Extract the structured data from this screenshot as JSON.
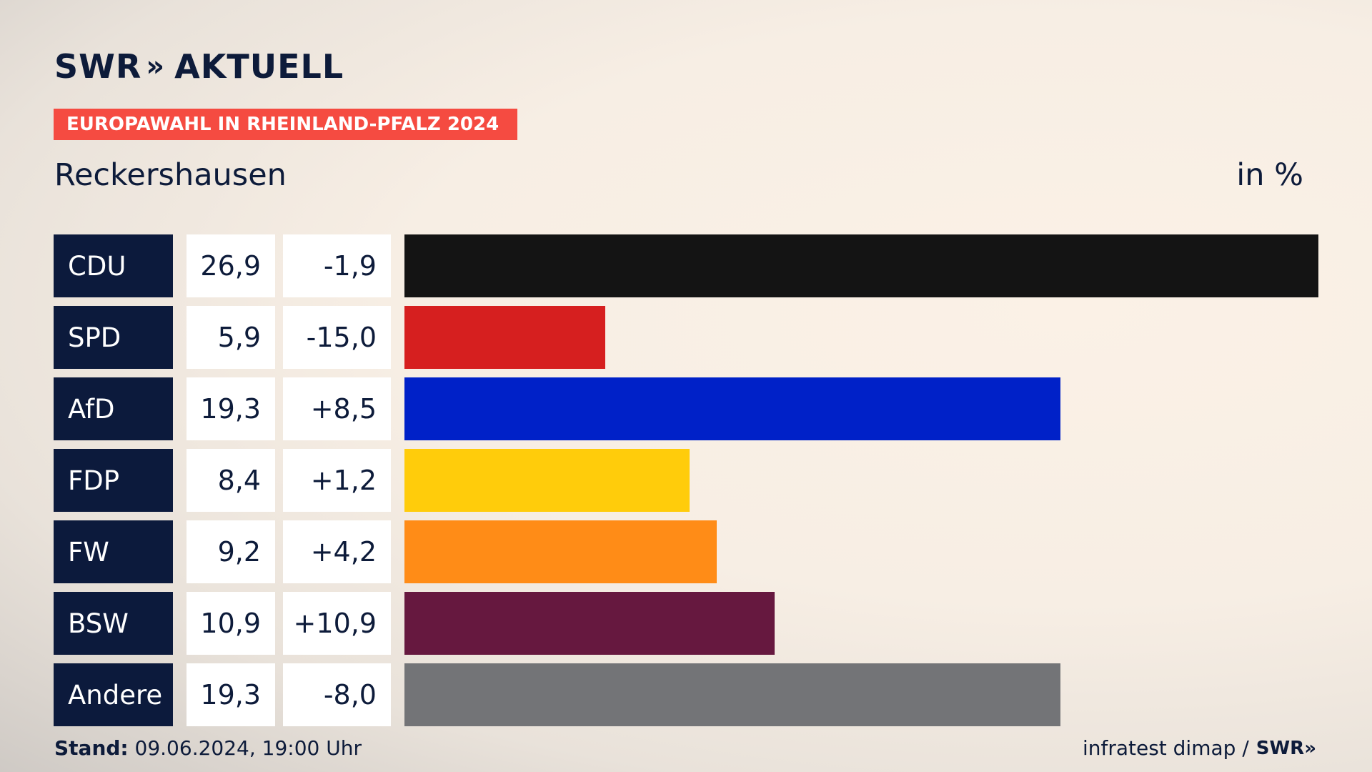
{
  "brand": {
    "logo_left": "SWR",
    "logo_chevrons": "»",
    "logo_right": "AKTUELL"
  },
  "banner": "EUROPAWAHL IN RHEINLAND-PFALZ 2024",
  "place": "Reckershausen",
  "unit": "in %",
  "footer": {
    "stand_label": "Stand:",
    "stand_value": "09.06.2024, 19:00 Uhr",
    "source": "infratest dimap /",
    "source_logo": "SWR»"
  },
  "chart_data": {
    "type": "bar",
    "orientation": "horizontal",
    "categories": [
      "CDU",
      "SPD",
      "AfD",
      "FDP",
      "FW",
      "BSW",
      "Andere"
    ],
    "values": [
      26.9,
      5.9,
      19.3,
      8.4,
      9.2,
      10.9,
      19.3
    ],
    "value_labels": [
      "26,9",
      "5,9",
      "19,3",
      "8,4",
      "9,2",
      "10,9",
      "19,3"
    ],
    "changes": [
      -1.9,
      -15.0,
      8.5,
      1.2,
      4.2,
      10.9,
      -8.0
    ],
    "change_labels": [
      "-1,9",
      "-15,0",
      "+8,5",
      "+1,2",
      "+4,2",
      "+10,9",
      "-8,0"
    ],
    "colors": [
      "#141414",
      "#d61f1f",
      "#0021c8",
      "#ffcc0b",
      "#ff8c17",
      "#66183f",
      "#737477"
    ],
    "xlim": [
      0,
      26.9
    ]
  }
}
